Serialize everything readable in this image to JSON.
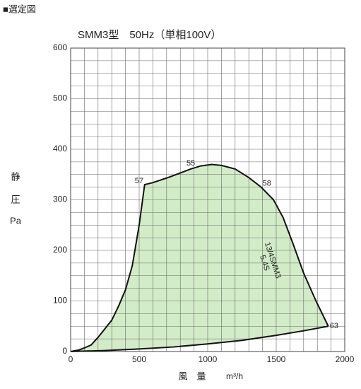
{
  "header": "■選定図",
  "chart_data": {
    "type": "area",
    "title": "SMM3型　50Hz（単相100V）",
    "ylabel": [
      "静",
      "圧",
      "Pa"
    ],
    "xlabel": "風　量",
    "xunit": "m³/h",
    "xlim": [
      0,
      2000
    ],
    "ylim": [
      0,
      600
    ],
    "xticks": [
      0,
      500,
      1000,
      1500,
      2000
    ],
    "yticks": [
      0,
      100,
      200,
      300,
      400,
      500,
      600
    ],
    "xgrid": [
      0,
      100,
      200,
      300,
      400,
      500,
      600,
      700,
      800,
      900,
      1000,
      1100,
      1200,
      1300,
      1400,
      1500,
      1600,
      1700,
      1800,
      1900,
      2000
    ],
    "ygrid": [
      0,
      25,
      50,
      75,
      100,
      125,
      150,
      175,
      200,
      225,
      250,
      275,
      300,
      325,
      350,
      375,
      400,
      425,
      450,
      475,
      500,
      525,
      550,
      575,
      600
    ],
    "fill": "#d3ecc8",
    "color": "#111111",
    "upper": {
      "x": [
        0,
        60,
        100,
        150,
        200,
        250,
        300,
        350,
        400,
        450,
        500,
        540,
        600,
        700,
        800,
        876,
        950,
        1030,
        1100,
        1200,
        1300,
        1390,
        1480,
        1550,
        1620,
        1700,
        1790,
        1880
      ],
      "values": [
        0,
        3,
        7,
        13,
        28,
        45,
        62,
        90,
        122,
        170,
        250,
        330,
        334,
        343,
        353,
        361,
        367,
        370,
        368,
        361,
        344,
        325,
        300,
        265,
        215,
        155,
        100,
        50
      ]
    },
    "lower": {
      "x": [
        0,
        250,
        500,
        750,
        1000,
        1250,
        1500,
        1700,
        1880
      ],
      "values": [
        0,
        2,
        5,
        9,
        15,
        22,
        32,
        41,
        50
      ]
    },
    "points": [
      {
        "label": "57",
        "x": 540,
        "y": 330
      },
      {
        "label": "55",
        "x": 876,
        "y": 361
      },
      {
        "label": "58",
        "x": 1390,
        "y": 325
      },
      {
        "label": "63",
        "x": 1880,
        "y": 50
      }
    ],
    "annotation": [
      "13/4SMM3",
      "5.4S"
    ]
  }
}
